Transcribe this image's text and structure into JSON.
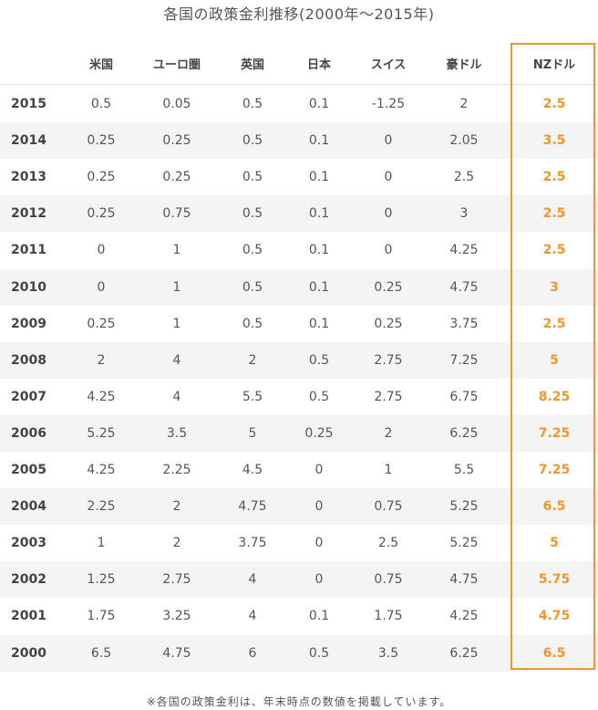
{
  "title": "各国の政策金利推移(2000年〜2015年)",
  "note": "※各国の政策金利は、年末時点の数値を掲載しています。",
  "colors": {
    "accent": "#f0972b",
    "row_alt": "#f4f4f4",
    "text": "#444444"
  },
  "chart_data": {
    "type": "table",
    "columns": [
      "",
      "米国",
      "ユーロ圏",
      "英国",
      "日本",
      "スイス",
      "豪ドル",
      "NZドル"
    ],
    "rows": [
      [
        "2015",
        "0.5",
        "0.05",
        "0.5",
        "0.1",
        "-1.25",
        "2",
        "2.5"
      ],
      [
        "2014",
        "0.25",
        "0.25",
        "0.5",
        "0.1",
        "0",
        "2.05",
        "3.5"
      ],
      [
        "2013",
        "0.25",
        "0.25",
        "0.5",
        "0.1",
        "0",
        "2.5",
        "2.5"
      ],
      [
        "2012",
        "0.25",
        "0.75",
        "0.5",
        "0.1",
        "0",
        "3",
        "2.5"
      ],
      [
        "2011",
        "0",
        "1",
        "0.5",
        "0.1",
        "0",
        "4.25",
        "2.5"
      ],
      [
        "2010",
        "0",
        "1",
        "0.5",
        "0.1",
        "0.25",
        "4.75",
        "3"
      ],
      [
        "2009",
        "0.25",
        "1",
        "0.5",
        "0.1",
        "0.25",
        "3.75",
        "2.5"
      ],
      [
        "2008",
        "2",
        "4",
        "2",
        "0.5",
        "2.75",
        "7.25",
        "5"
      ],
      [
        "2007",
        "4.25",
        "4",
        "5.5",
        "0.5",
        "2.75",
        "6.75",
        "8.25"
      ],
      [
        "2006",
        "5.25",
        "3.5",
        "5",
        "0.25",
        "2",
        "6.25",
        "7.25"
      ],
      [
        "2005",
        "4.25",
        "2.25",
        "4.5",
        "0",
        "1",
        "5.5",
        "7.25"
      ],
      [
        "2004",
        "2.25",
        "2",
        "4.75",
        "0",
        "0.75",
        "5.25",
        "6.5"
      ],
      [
        "2003",
        "1",
        "2",
        "3.75",
        "0",
        "2.5",
        "5.25",
        "5"
      ],
      [
        "2002",
        "1.25",
        "2.75",
        "4",
        "0",
        "0.75",
        "4.75",
        "5.75"
      ],
      [
        "2001",
        "1.75",
        "3.25",
        "4",
        "0.1",
        "1.75",
        "4.25",
        "4.75"
      ],
      [
        "2000",
        "6.5",
        "4.75",
        "6",
        "0.5",
        "3.5",
        "6.25",
        "6.5"
      ]
    ]
  }
}
